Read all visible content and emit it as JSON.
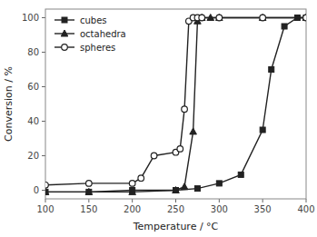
{
  "chart_data": {
    "type": "line",
    "title": "",
    "xlabel": "Temperature / °C",
    "ylabel": "Conversion / %",
    "xlim": [
      100,
      400
    ],
    "ylim": [
      -5,
      105
    ],
    "xticks": [
      100,
      150,
      200,
      250,
      300,
      350,
      400
    ],
    "yticks": [
      0,
      20,
      40,
      60,
      80,
      100
    ],
    "grid": false,
    "legend": "upper left",
    "series": [
      {
        "name": "cubes",
        "color": "#222222",
        "marker": "square",
        "x": [
          100,
          150,
          200,
          250,
          275,
          300,
          325,
          350,
          360,
          375,
          390,
          400
        ],
        "values": [
          -1,
          -1,
          0,
          0,
          1,
          4,
          9,
          35,
          70,
          95,
          100,
          100
        ]
      },
      {
        "name": "octahedra",
        "color": "#222222",
        "marker": "triangle",
        "x": [
          100,
          150,
          200,
          250,
          260,
          270,
          275,
          280,
          290,
          300,
          350,
          400
        ],
        "values": [
          -1,
          -1,
          -1,
          0,
          2,
          34,
          98,
          100,
          100,
          100,
          100,
          100
        ]
      },
      {
        "name": "spheres",
        "color": "#222222",
        "marker": "open-circle",
        "x": [
          100,
          150,
          200,
          210,
          225,
          250,
          255,
          260,
          265,
          270,
          275,
          280,
          300,
          350,
          400
        ],
        "values": [
          3,
          4,
          4,
          7,
          20,
          22,
          24,
          47,
          98,
          100,
          100,
          100,
          100,
          100,
          100
        ]
      }
    ]
  }
}
